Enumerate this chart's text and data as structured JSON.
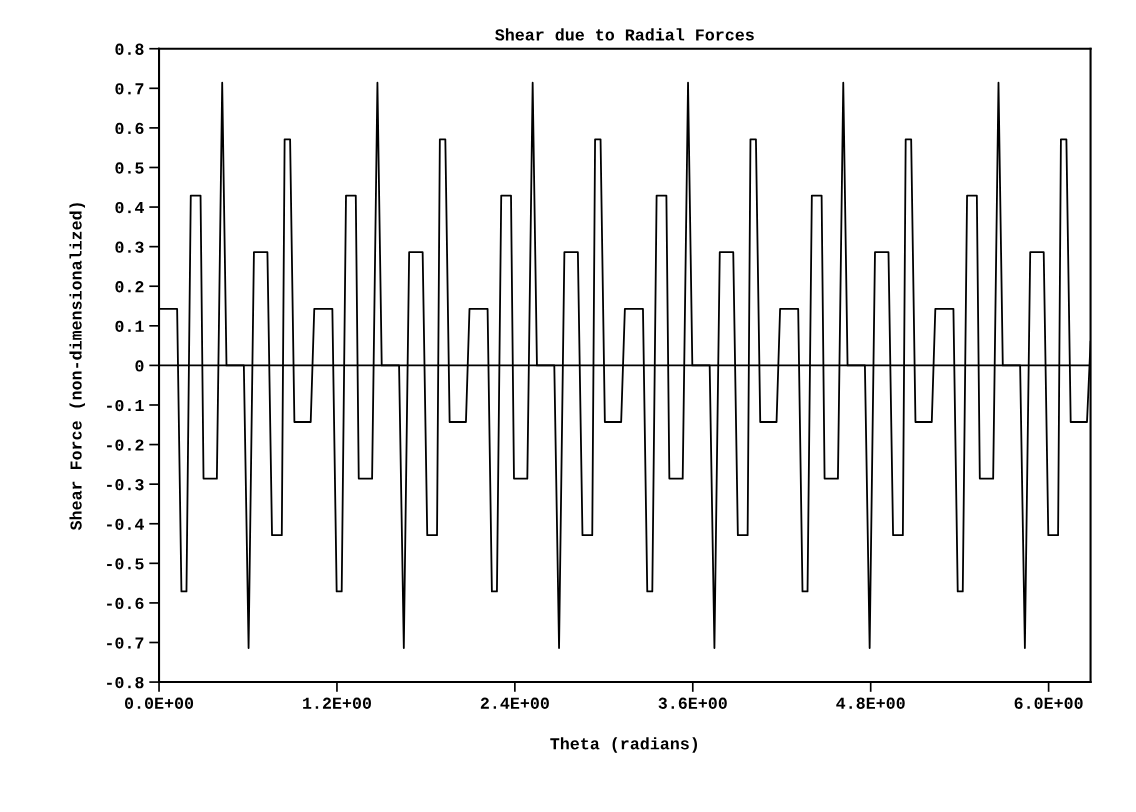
{
  "chart_data": {
    "type": "line",
    "title": "Shear due to Radial Forces",
    "xlabel": "Theta (radians)",
    "ylabel": "Shear Force (non-dimensionalized)",
    "series": [
      {
        "color": "#000000",
        "x": [
          0,
          0.122,
          0.151,
          0.185,
          0.214,
          0.28,
          0.3,
          0.39,
          0.426,
          0.455,
          0.572,
          0.604,
          0.64,
          0.731,
          0.762,
          0.828,
          0.847,
          0.884,
          0.913,
          1.023,
          1.047,
          1.169,
          1.198,
          1.232,
          1.261,
          1.327,
          1.347,
          1.437,
          1.473,
          1.502,
          1.619,
          1.651,
          1.687,
          1.778,
          1.809,
          1.875,
          1.894,
          1.931,
          1.96,
          2.07,
          2.094,
          2.216,
          2.245,
          2.279,
          2.308,
          2.374,
          2.394,
          2.484,
          2.52,
          2.549,
          2.666,
          2.698,
          2.734,
          2.825,
          2.856,
          2.922,
          2.941,
          2.978,
          3.007,
          3.117,
          3.142,
          3.264,
          3.293,
          3.327,
          3.356,
          3.422,
          3.442,
          3.532,
          3.568,
          3.597,
          3.714,
          3.746,
          3.782,
          3.873,
          3.904,
          3.97,
          3.989,
          4.026,
          4.055,
          4.165,
          4.189,
          4.311,
          4.34,
          4.374,
          4.403,
          4.469,
          4.489,
          4.579,
          4.615,
          4.644,
          4.761,
          4.793,
          4.829,
          4.92,
          4.951,
          5.017,
          5.036,
          5.073,
          5.102,
          5.212,
          5.236,
          5.358,
          5.387,
          5.421,
          5.45,
          5.516,
          5.536,
          5.626,
          5.662,
          5.691,
          5.808,
          5.84,
          5.876,
          5.967,
          5.998,
          6.064,
          6.083,
          6.12,
          6.149,
          6.259,
          6.283
        ],
        "values": [
          0.143,
          0.143,
          -0.571,
          -0.571,
          0.429,
          0.429,
          -0.286,
          -0.286,
          0.714,
          0,
          0,
          -0.714,
          0.286,
          0.286,
          -0.429,
          -0.429,
          0.571,
          0.571,
          -0.143,
          -0.143,
          0.143,
          0.143,
          -0.571,
          -0.571,
          0.429,
          0.429,
          -0.286,
          -0.286,
          0.714,
          0,
          0,
          -0.714,
          0.286,
          0.286,
          -0.429,
          -0.429,
          0.571,
          0.571,
          -0.143,
          -0.143,
          0.143,
          0.143,
          -0.571,
          -0.571,
          0.429,
          0.429,
          -0.286,
          -0.286,
          0.714,
          0,
          0,
          -0.714,
          0.286,
          0.286,
          -0.429,
          -0.429,
          0.571,
          0.571,
          -0.143,
          -0.143,
          0.143,
          0.143,
          -0.571,
          -0.571,
          0.429,
          0.429,
          -0.286,
          -0.286,
          0.714,
          0,
          0,
          -0.714,
          0.286,
          0.286,
          -0.429,
          -0.429,
          0.571,
          0.571,
          -0.143,
          -0.143,
          0.143,
          0.143,
          -0.571,
          -0.571,
          0.429,
          0.429,
          -0.286,
          -0.286,
          0.714,
          0,
          0,
          -0.714,
          0.286,
          0.286,
          -0.429,
          -0.429,
          0.571,
          0.571,
          -0.143,
          -0.143,
          0.143,
          0.143,
          -0.571,
          -0.571,
          0.429,
          0.429,
          -0.286,
          -0.286,
          0.714,
          0,
          0,
          -0.714,
          0.286,
          0.286,
          -0.429,
          -0.429,
          0.571,
          0.571,
          -0.143,
          -0.143,
          0.06
        ]
      }
    ],
    "xlim": [
      0,
      6.283
    ],
    "xticks": [
      {
        "value": 0,
        "label": "0.0E+00"
      },
      {
        "value": 1.2,
        "label": "1.2E+00"
      },
      {
        "value": 2.4,
        "label": "2.4E+00"
      },
      {
        "value": 3.6,
        "label": "3.6E+00"
      },
      {
        "value": 4.8,
        "label": "4.8E+00"
      },
      {
        "value": 6.0,
        "label": "6.0E+00"
      }
    ],
    "ylim": [
      -0.8,
      0.8
    ],
    "yticks": [
      -0.8,
      -0.7,
      -0.6,
      -0.5,
      -0.4,
      -0.3,
      -0.2,
      -0.1,
      0,
      0.1,
      0.2,
      0.3,
      0.4,
      0.5,
      0.6,
      0.7,
      0.8
    ],
    "ref_lines": [
      {
        "axis": "y",
        "value": 0,
        "color": "#000000"
      }
    ],
    "grid": false,
    "marker": "none",
    "line_style": "solid"
  }
}
